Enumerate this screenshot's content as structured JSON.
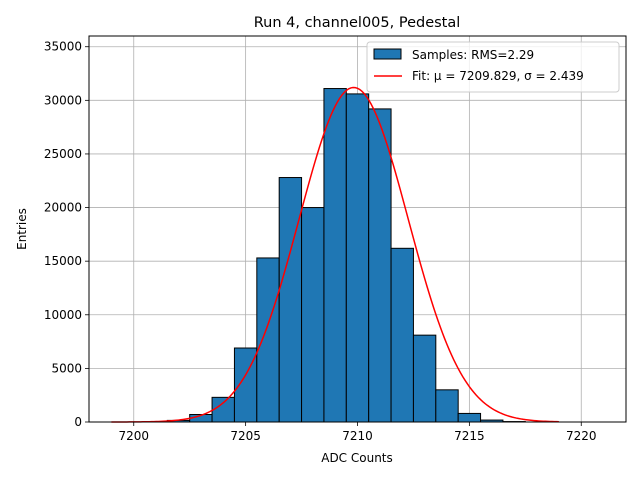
{
  "chart_data": {
    "type": "bar",
    "title": "Run 4, channel005, Pedestal",
    "xlabel": "ADC Counts",
    "ylabel": "Entries",
    "xlim": [
      7198,
      7222
    ],
    "ylim": [
      0,
      36000
    ],
    "xticks": [
      7200,
      7205,
      7210,
      7215,
      7220
    ],
    "yticks": [
      0,
      5000,
      10000,
      15000,
      20000,
      25000,
      30000,
      35000
    ],
    "grid": true,
    "legend_position": "top-right",
    "bin_width": 1,
    "bins": [
      {
        "x": 7201,
        "value": 40
      },
      {
        "x": 7202,
        "value": 150
      },
      {
        "x": 7203,
        "value": 700
      },
      {
        "x": 7204,
        "value": 2300
      },
      {
        "x": 7205,
        "value": 6900
      },
      {
        "x": 7206,
        "value": 15300
      },
      {
        "x": 7207,
        "value": 22800
      },
      {
        "x": 7208,
        "value": 20000
      },
      {
        "x": 7209,
        "value": 31100
      },
      {
        "x": 7210,
        "value": 30600
      },
      {
        "x": 7211,
        "value": 29200
      },
      {
        "x": 7212,
        "value": 16200
      },
      {
        "x": 7213,
        "value": 8100
      },
      {
        "x": 7214,
        "value": 3000
      },
      {
        "x": 7215,
        "value": 800
      },
      {
        "x": 7216,
        "value": 180
      },
      {
        "x": 7217,
        "value": 40
      }
    ],
    "fit": {
      "mu": 7209.829,
      "sigma": 2.439,
      "amplitude": 31200,
      "x_range": [
        7199,
        7219
      ]
    },
    "series": [
      {
        "name": "Samples: RMS=2.29",
        "type": "bar",
        "color": "#1f77b4",
        "edgecolor": "#000000"
      },
      {
        "name": "Fit: μ = 7209.829, σ = 2.439",
        "type": "line",
        "color": "#ff0000"
      }
    ]
  }
}
